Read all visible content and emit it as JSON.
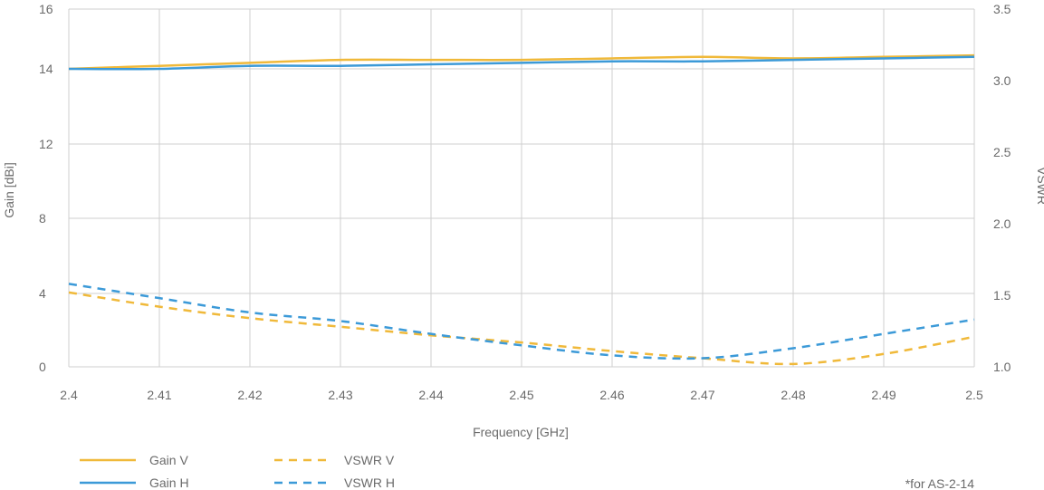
{
  "chart_data": {
    "type": "line",
    "xlabel": "Frequency [GHz]",
    "ylabel_left": "Gain [dBi]",
    "ylabel_right": "VSWR",
    "xlim": [
      2.4,
      2.5
    ],
    "ylim_left": [
      0,
      16
    ],
    "ylim_right": [
      1.0,
      3.5
    ],
    "x_ticks": [
      "2.4",
      "2.41",
      "2.42",
      "2.43",
      "2.44",
      "2.45",
      "2.46",
      "2.47",
      "2.48",
      "2.49",
      "2.5"
    ],
    "y_left_ticks": [
      "0",
      "4",
      "8",
      "12",
      "14",
      "16"
    ],
    "y_right_ticks": [
      "1.0",
      "1.5",
      "2.0",
      "2.5",
      "3.0",
      "3.5"
    ],
    "grid": true,
    "legend_position": "bottom-left",
    "x": [
      2.4,
      2.41,
      2.42,
      2.43,
      2.44,
      2.45,
      2.46,
      2.47,
      2.48,
      2.49,
      2.5
    ],
    "series": [
      {
        "name": "Gain V",
        "axis": "left",
        "style": "solid",
        "color": "#f0b93a",
        "values": [
          14.0,
          14.1,
          14.2,
          14.3,
          14.3,
          14.3,
          14.35,
          14.4,
          14.35,
          14.4,
          14.45
        ]
      },
      {
        "name": "Gain H",
        "axis": "left",
        "style": "solid",
        "color": "#3c9ad8",
        "values": [
          14.0,
          14.0,
          14.1,
          14.1,
          14.15,
          14.2,
          14.25,
          14.25,
          14.3,
          14.35,
          14.4
        ]
      },
      {
        "name": "VSWR V",
        "axis": "right",
        "style": "dashed",
        "color": "#f0b93a",
        "values": [
          1.52,
          1.42,
          1.34,
          1.28,
          1.22,
          1.17,
          1.11,
          1.06,
          1.02,
          1.09,
          1.21
        ]
      },
      {
        "name": "VSWR H",
        "axis": "right",
        "style": "dashed",
        "color": "#3c9ad8",
        "values": [
          1.58,
          1.48,
          1.38,
          1.32,
          1.23,
          1.15,
          1.08,
          1.06,
          1.13,
          1.23,
          1.33
        ]
      }
    ],
    "footnote": "*for AS-2-14"
  }
}
